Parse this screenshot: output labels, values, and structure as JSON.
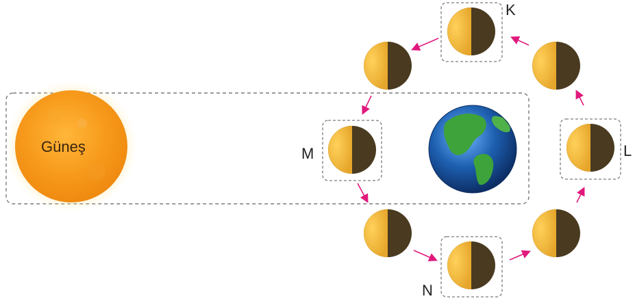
{
  "sun": {
    "label": "Güneş"
  },
  "moons": [
    {
      "label": "K",
      "boxed": true
    },
    {
      "label": "",
      "boxed": false
    },
    {
      "label": "M",
      "boxed": true
    },
    {
      "label": "",
      "boxed": false
    },
    {
      "label": "N",
      "boxed": true
    },
    {
      "label": "",
      "boxed": false
    },
    {
      "label": "L",
      "boxed": true
    },
    {
      "label": "",
      "boxed": false
    }
  ],
  "colors": {
    "moon_lit": "#f2b93a",
    "moon_dark": "#4a3a20",
    "arrow": "#e0197d",
    "dashed_border": "#7a7a7a",
    "sun_core": "#f7a21e",
    "ocean": "#1d5fb0",
    "land": "#3da33a"
  },
  "icons": [
    "sun-icon",
    "earth-icon",
    "moon-phase-icon",
    "arrow-icon"
  ]
}
